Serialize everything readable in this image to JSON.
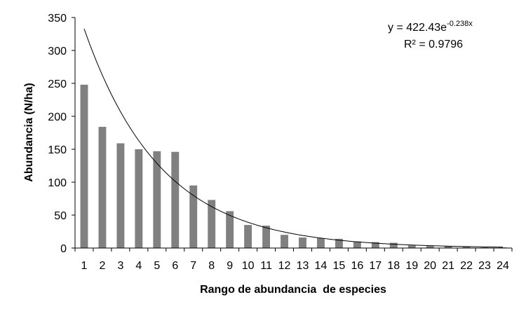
{
  "chart_data": {
    "type": "bar",
    "title": "",
    "xlabel": "Rango de abundancia  de especies",
    "ylabel": "Abundancia (N/ha)",
    "categories": [
      "1",
      "2",
      "3",
      "4",
      "5",
      "6",
      "7",
      "8",
      "9",
      "10",
      "11",
      "12",
      "13",
      "14",
      "15",
      "16",
      "17",
      "18",
      "19",
      "20",
      "21",
      "22",
      "23",
      "24"
    ],
    "values": [
      248,
      184,
      159,
      150,
      147,
      146,
      95,
      73,
      56,
      35,
      34,
      20,
      16,
      15,
      14,
      10,
      9,
      8,
      4,
      3,
      3,
      2,
      1,
      1
    ],
    "ylim": [
      0,
      350
    ],
    "yticks": [
      0,
      50,
      100,
      150,
      200,
      250,
      300,
      350
    ],
    "bar_color": "#808080",
    "grid": false,
    "trendline": {
      "type": "exponential",
      "a": 422.43,
      "b": -0.238,
      "equation_main": "y = 422.43e",
      "equation_exp": "-0.238x",
      "r2_label": "R² = 0.9796"
    }
  }
}
